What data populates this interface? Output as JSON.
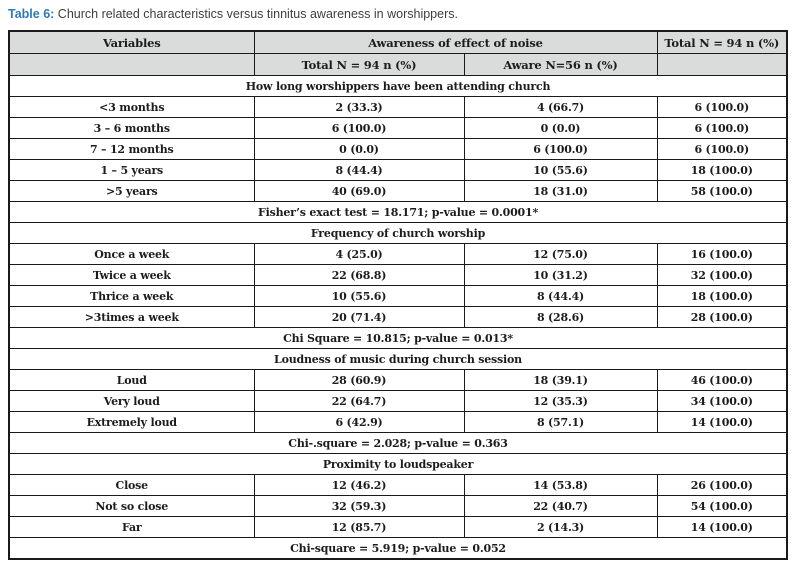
{
  "title": {
    "label": "Table 6:",
    "text": "Church related characteristics versus tinnitus awareness in worshippers."
  },
  "colors": {
    "accent_blue": "#2e79ba",
    "header_row_bg": "#d9dcda",
    "table_border": "#1a1a1a",
    "caption_text": "#3e3e3e",
    "body_text": "#1c1c1c"
  },
  "table": {
    "header_row1": [
      "Variables",
      "Awareness of effect of noise",
      "Total N = 94 n (%)"
    ],
    "header_row2": [
      "",
      "Total N = 94 n (%)",
      "Aware N=56 n (%)",
      ""
    ],
    "sections": [
      {
        "title": "How long worshippers have been attending church",
        "rows": [
          [
            "<3 months",
            "2 (33.3)",
            "4 (66.7)",
            "6 (100.0)"
          ],
          [
            "3 – 6 months",
            "6 (100.0)",
            "0 (0.0)",
            "6 (100.0)"
          ],
          [
            "7 – 12 months",
            "0 (0.0)",
            "6 (100.0)",
            "6 (100.0)"
          ],
          [
            "1 – 5 years",
            "8 (44.4)",
            "10 (55.6)",
            "18 (100.0)"
          ],
          [
            ">5 years",
            "40 (69.0)",
            "18 (31.0)",
            "58 (100.0)"
          ]
        ],
        "stat": "Fisher’s exact test = 18.171; p-value = 0.0001*"
      },
      {
        "title": "Frequency of church worship",
        "rows": [
          [
            "Once a week",
            "4 (25.0)",
            "12 (75.0)",
            "16 (100.0)"
          ],
          [
            "Twice a week",
            "22 (68.8)",
            "10 (31.2)",
            "32 (100.0)"
          ],
          [
            "Thrice a week",
            "10 (55.6)",
            "8 (44.4)",
            "18 (100.0)"
          ],
          [
            ">3times a week",
            "20 (71.4)",
            "8 (28.6)",
            "28 (100.0)"
          ]
        ],
        "stat": "Chi Square = 10.815; p-value = 0.013*"
      },
      {
        "title": "Loudness of music during church session",
        "rows": [
          [
            "Loud",
            "28 (60.9)",
            "18 (39.1)",
            "46 (100.0)"
          ],
          [
            "Very loud",
            "22 (64.7)",
            "12 (35.3)",
            "34 (100.0)"
          ],
          [
            "Extremely loud",
            "6 (42.9)",
            "8 (57.1)",
            "14 (100.0)"
          ]
        ],
        "stat": "Chi-.square = 2.028; p-value = 0.363"
      },
      {
        "title": "Proximity to loudspeaker",
        "rows": [
          [
            "Close",
            "12 (46.2)",
            "14 (53.8)",
            "26 (100.0)"
          ],
          [
            "Not so close",
            "32 (59.3)",
            "22 (40.7)",
            "54 (100.0)"
          ],
          [
            "Far",
            "12 (85.7)",
            "2 (14.3)",
            "14 (100.0)"
          ]
        ],
        "stat": "Chi-square = 5.919; p-value = 0.052"
      }
    ]
  }
}
